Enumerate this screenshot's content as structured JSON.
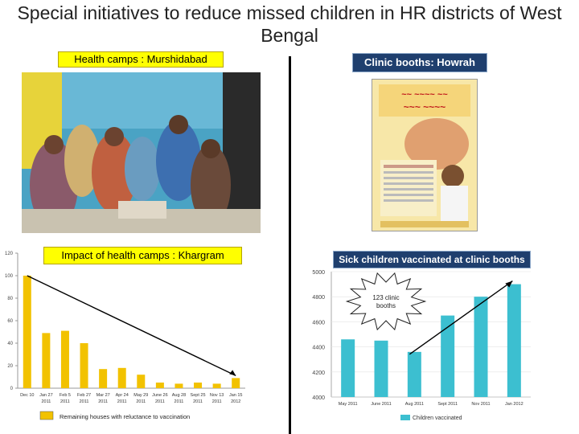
{
  "page": {
    "title": "Special initiatives to reduce missed children in HR districts of West Bengal"
  },
  "panels": {
    "health_camps_label": "Health camps : Murshidabad",
    "clinic_booths_label": "Clinic booths: Howrah",
    "impact_label": "Impact of health camps : Khargram",
    "sick_children_label": "Sick children vaccinated at clinic booths",
    "starburst_text_line1": "123 clinic",
    "starburst_text_line2": "booths"
  },
  "colors": {
    "bar_yellow": "#f2c200",
    "bar_teal": "#3cbfd0",
    "label_yellow": "#ffff00",
    "label_navy": "#1f3f6e"
  },
  "chart_data": [
    {
      "type": "bar",
      "title": "",
      "categories": [
        [
          "Dec 10",
          ""
        ],
        [
          "Jan 27",
          "2011"
        ],
        [
          "Feb 5",
          "2011"
        ],
        [
          "Feb 27",
          "2011"
        ],
        [
          "Mar 27",
          "2011"
        ],
        [
          "Apr 24",
          "2011"
        ],
        [
          "May 29",
          "2011"
        ],
        [
          "June 26",
          "2011"
        ],
        [
          "Aug 28",
          "2011"
        ],
        [
          "Sept 25",
          "2011"
        ],
        [
          "Nov 13",
          "2011"
        ],
        [
          "Jan 15",
          "2012"
        ]
      ],
      "values": [
        100,
        49,
        51,
        40,
        17,
        18,
        12,
        5,
        4,
        5,
        4,
        9
      ],
      "ylim": [
        0,
        120
      ],
      "yticks": [
        0,
        20,
        40,
        60,
        80,
        100,
        120
      ],
      "legend": [
        "Remaining houses with reluctance to vaccination"
      ],
      "trend_line": {
        "from_index": 0,
        "to_index": 11
      }
    },
    {
      "type": "bar",
      "title": "",
      "categories": [
        "May 2011",
        "June 2011",
        "Aug 2011",
        "Sept 2011",
        "Nov 2011",
        "Jan 2012"
      ],
      "values": [
        4460,
        4450,
        4360,
        4650,
        4800,
        4900
      ],
      "ylim": [
        4000,
        5000
      ],
      "yticks": [
        4000,
        4200,
        4400,
        4600,
        4800,
        5000
      ],
      "legend": [
        "Children vaccinated"
      ],
      "trend_line": {
        "from_index": 2,
        "to_index": 5
      }
    }
  ]
}
